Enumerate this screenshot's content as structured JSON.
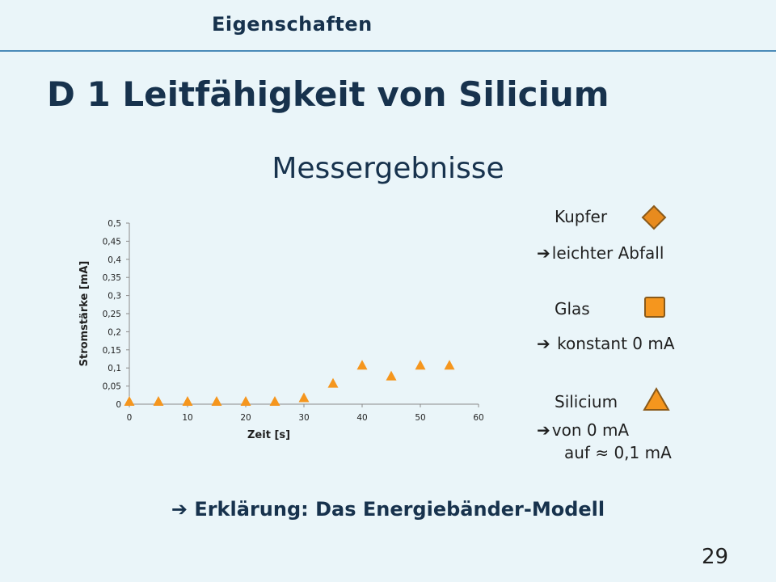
{
  "header": {
    "section": "Eigenschaften"
  },
  "title": "D 1 Leitfähigkeit von Silicium",
  "subtitle": "Messergebnisse",
  "legend": [
    {
      "label": "Kupfer",
      "note_arrow": "➔",
      "note": "leichter Abfall",
      "note_line2": "",
      "marker": "diamond",
      "color": "#e88b1e"
    },
    {
      "label": "Glas",
      "note_arrow": "➔",
      "note": " konstant 0 mA",
      "note_line2": "",
      "marker": "square",
      "color": "#f5961e"
    },
    {
      "label": "Silicium",
      "note_arrow": "➔",
      "note": "von 0 mA",
      "note_line2": "auf ≈ 0,1 mA",
      "marker": "triangle",
      "color": "#f5961e"
    }
  ],
  "bottom_note": {
    "arrow": "➔",
    "text": "Erklärung: Das Energiebänder-Modell"
  },
  "page_number": "29",
  "chart_data": {
    "type": "scatter",
    "xlabel": "Zeit [s]",
    "ylabel": "Stromstärke [mA]",
    "xlim": [
      0,
      60
    ],
    "ylim": [
      0,
      0.5
    ],
    "x_ticks": [
      "0",
      "10",
      "20",
      "30",
      "40",
      "50",
      "60"
    ],
    "y_ticks": [
      "0",
      "0,05",
      "0,1",
      "0,15",
      "0,2",
      "0,25",
      "0,3",
      "0,35",
      "0,4",
      "0,45",
      "0,5"
    ],
    "grid": false,
    "series": [
      {
        "marker": "triangle",
        "color": "#f5961e",
        "x": [
          0,
          5,
          10,
          15,
          20,
          25,
          30,
          35,
          40,
          45,
          50,
          55
        ],
        "y": [
          0,
          0,
          0,
          0,
          0,
          0,
          0.01,
          0.05,
          0.1,
          0.07,
          0.1,
          0.1
        ]
      }
    ]
  }
}
